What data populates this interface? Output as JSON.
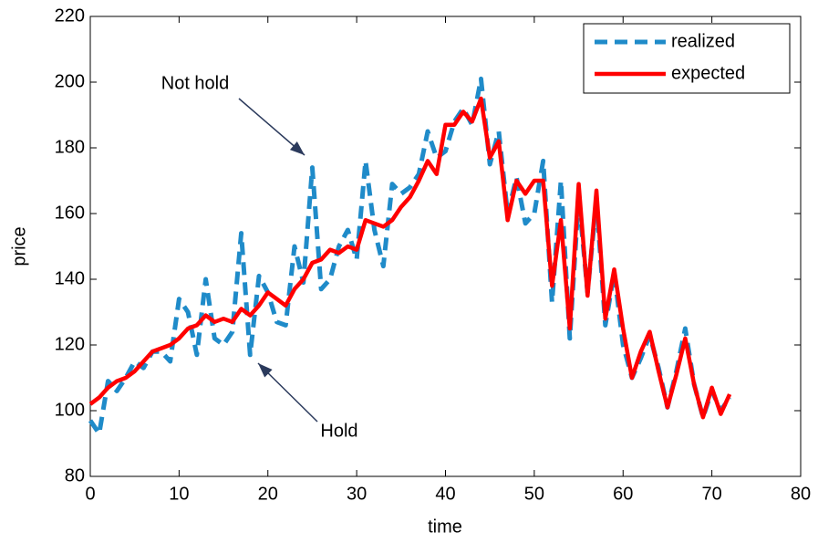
{
  "chart_data": {
    "type": "line",
    "xlabel": "time",
    "ylabel": "price",
    "x": [
      0,
      1,
      2,
      3,
      4,
      5,
      6,
      7,
      8,
      9,
      10,
      11,
      12,
      13,
      14,
      15,
      16,
      17,
      18,
      19,
      20,
      21,
      22,
      23,
      24,
      25,
      26,
      27,
      28,
      29,
      30,
      31,
      32,
      33,
      34,
      35,
      36,
      37,
      38,
      39,
      40,
      41,
      42,
      43,
      44,
      45,
      46,
      47,
      48,
      49,
      50,
      51,
      52,
      53,
      54,
      55,
      56,
      57,
      58,
      59,
      60,
      61,
      62,
      63,
      64,
      65,
      66,
      67,
      68,
      69,
      70,
      71,
      72
    ],
    "series": [
      {
        "name": "realized",
        "color": "#1f8bc9",
        "dashed": true,
        "values": [
          97,
          93,
          109,
          106,
          110,
          115,
          113,
          118,
          118,
          115,
          134,
          130,
          117,
          140,
          122,
          120,
          124,
          154,
          117,
          141,
          136,
          127,
          126,
          150,
          139,
          174,
          137,
          140,
          150,
          155,
          146,
          176,
          155,
          144,
          169,
          166,
          168,
          172,
          185,
          177,
          179,
          188,
          192,
          187,
          201,
          175,
          185,
          160,
          171,
          157,
          160,
          176,
          133,
          170,
          122,
          165,
          136,
          164,
          126,
          142,
          120,
          110,
          116,
          123,
          113,
          101,
          112,
          125,
          108,
          98,
          106,
          100,
          104
        ]
      },
      {
        "name": "expected",
        "color": "#ff0000",
        "dashed": false,
        "values": [
          102,
          104,
          107,
          109,
          110,
          112,
          115,
          118,
          119,
          120,
          122,
          125,
          126,
          129,
          127,
          128,
          127,
          131,
          129,
          132,
          136,
          134,
          132,
          137,
          140,
          145,
          146,
          149,
          148,
          150,
          149,
          158,
          157,
          156,
          158,
          162,
          165,
          170,
          176,
          172,
          187,
          187,
          191,
          188,
          195,
          177,
          182,
          158,
          170,
          166,
          170,
          170,
          138,
          158,
          125,
          169,
          135,
          167,
          128,
          143,
          125,
          110,
          118,
          124,
          112,
          101,
          111,
          122,
          108,
          98,
          107,
          99,
          105
        ]
      }
    ],
    "annotations": [
      "Not hold",
      "Hold"
    ],
    "xlim": [
      0,
      80
    ],
    "xticks": [
      0,
      10,
      20,
      30,
      40,
      50,
      60,
      70,
      80
    ],
    "ylim": [
      80,
      220
    ],
    "yticks": [
      80,
      100,
      120,
      140,
      160,
      180,
      200,
      220
    ],
    "grid": false,
    "legend": "upper right"
  }
}
